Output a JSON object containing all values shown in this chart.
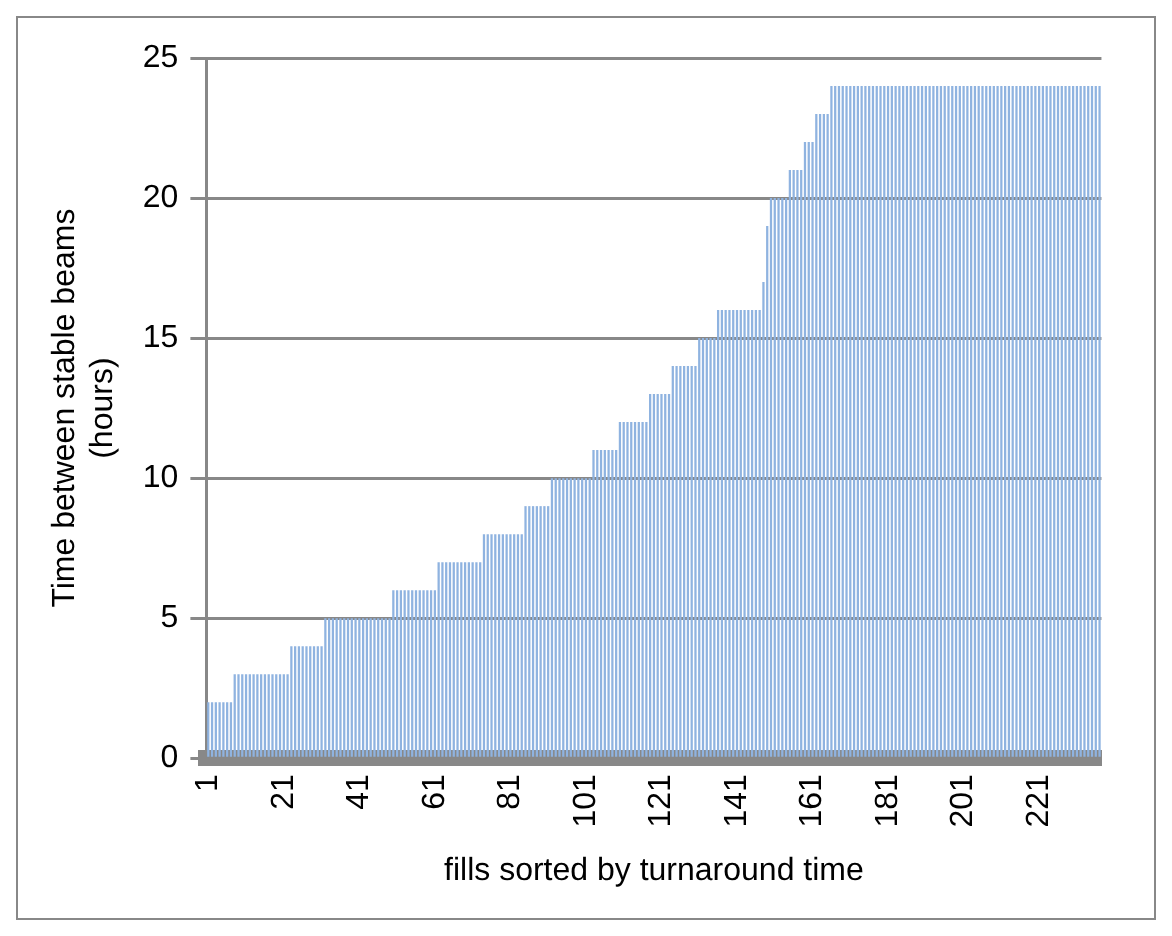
{
  "chart_data": {
    "type": "bar",
    "xlabel": "fills sorted by turnaround time",
    "ylabel": "Time between stable beams (hours)",
    "categories": [
      "1",
      null,
      null,
      null,
      null,
      null,
      null,
      null,
      null,
      null,
      null,
      null,
      null,
      null,
      null,
      null,
      null,
      null,
      null,
      null,
      "21",
      null,
      null,
      null,
      null,
      null,
      null,
      null,
      null,
      null,
      null,
      null,
      null,
      null,
      null,
      null,
      null,
      null,
      null,
      null,
      "41",
      null,
      null,
      null,
      null,
      null,
      null,
      null,
      null,
      null,
      null,
      null,
      null,
      null,
      null,
      null,
      null,
      null,
      null,
      null,
      "61",
      null,
      null,
      null,
      null,
      null,
      null,
      null,
      null,
      null,
      null,
      null,
      null,
      null,
      null,
      null,
      null,
      null,
      null,
      null,
      "81",
      null,
      null,
      null,
      null,
      null,
      null,
      null,
      null,
      null,
      null,
      null,
      null,
      null,
      null,
      null,
      null,
      null,
      null,
      null,
      "101",
      null,
      null,
      null,
      null,
      null,
      null,
      null,
      null,
      null,
      null,
      null,
      null,
      null,
      null,
      null,
      null,
      null,
      null,
      null,
      "121",
      null,
      null,
      null,
      null,
      null,
      null,
      null,
      null,
      null,
      null,
      null,
      null,
      null,
      null,
      null,
      null,
      null,
      null,
      null,
      "141",
      null,
      null,
      null,
      null,
      null,
      null,
      null,
      null,
      null,
      null,
      null,
      null,
      null,
      null,
      null,
      null,
      null,
      null,
      null,
      "161",
      null,
      null,
      null,
      null,
      null,
      null,
      null,
      null,
      null,
      null,
      null,
      null,
      null,
      null,
      null,
      null,
      null,
      null,
      null,
      "181",
      null,
      null,
      null,
      null,
      null,
      null,
      null,
      null,
      null,
      null,
      null,
      null,
      null,
      null,
      null,
      null,
      null,
      null,
      null,
      "201",
      null,
      null,
      null,
      null,
      null,
      null,
      null,
      null,
      null,
      null,
      null,
      null,
      null,
      null,
      null,
      null,
      null,
      null,
      null,
      "221",
      null,
      null,
      null,
      null,
      null,
      null,
      null,
      null,
      null,
      null,
      null,
      null,
      null,
      null,
      null,
      null
    ],
    "values": [
      2,
      2,
      2,
      2,
      2,
      2,
      2,
      3,
      3,
      3,
      3,
      3,
      3,
      3,
      3,
      3,
      3,
      3,
      3,
      3,
      3,
      3,
      4,
      4,
      4,
      4,
      4,
      4,
      4,
      4,
      4,
      5,
      5,
      5,
      5,
      5,
      5,
      5,
      5,
      5,
      5,
      5,
      5,
      5,
      5,
      5,
      5,
      5,
      5,
      6,
      6,
      6,
      6,
      6,
      6,
      6,
      6,
      6,
      6,
      6,
      6,
      7,
      7,
      7,
      7,
      7,
      7,
      7,
      7,
      7,
      7,
      7,
      7,
      8,
      8,
      8,
      8,
      8,
      8,
      8,
      8,
      8,
      8,
      8,
      9,
      9,
      9,
      9,
      9,
      9,
      9,
      10,
      10,
      10,
      10,
      10,
      10,
      10,
      10,
      10,
      10,
      10,
      11,
      11,
      11,
      11,
      11,
      11,
      11,
      12,
      12,
      12,
      12,
      12,
      12,
      12,
      12,
      13,
      13,
      13,
      13,
      13,
      13,
      14,
      14,
      14,
      14,
      14,
      14,
      14,
      15,
      15,
      15,
      15,
      15,
      16,
      16,
      16,
      16,
      16,
      16,
      16,
      16,
      16,
      16,
      16,
      16,
      17,
      19,
      20,
      20,
      20,
      20,
      20,
      21,
      21,
      21,
      21,
      22,
      22,
      22,
      23,
      23,
      23,
      23,
      24,
      24,
      24,
      24,
      24,
      24,
      24,
      24,
      24,
      24,
      24,
      24,
      24,
      24,
      24,
      24,
      24,
      24,
      24,
      24,
      24,
      24,
      24,
      24,
      24,
      24,
      24,
      24,
      24,
      24,
      24,
      24,
      24,
      24,
      24,
      24,
      24,
      24,
      24,
      24,
      24,
      24,
      24,
      24,
      24,
      24,
      24,
      24,
      24,
      24,
      24,
      24,
      24,
      24,
      24,
      24,
      24,
      24,
      24,
      24,
      24,
      24,
      24,
      24,
      24,
      24,
      24,
      24,
      24,
      24,
      24,
      24
    ],
    "color": "#8fb3e0",
    "ylim": [
      0,
      25
    ],
    "yticks": [
      0,
      5,
      10,
      15,
      20,
      25
    ],
    "grid": "y"
  }
}
